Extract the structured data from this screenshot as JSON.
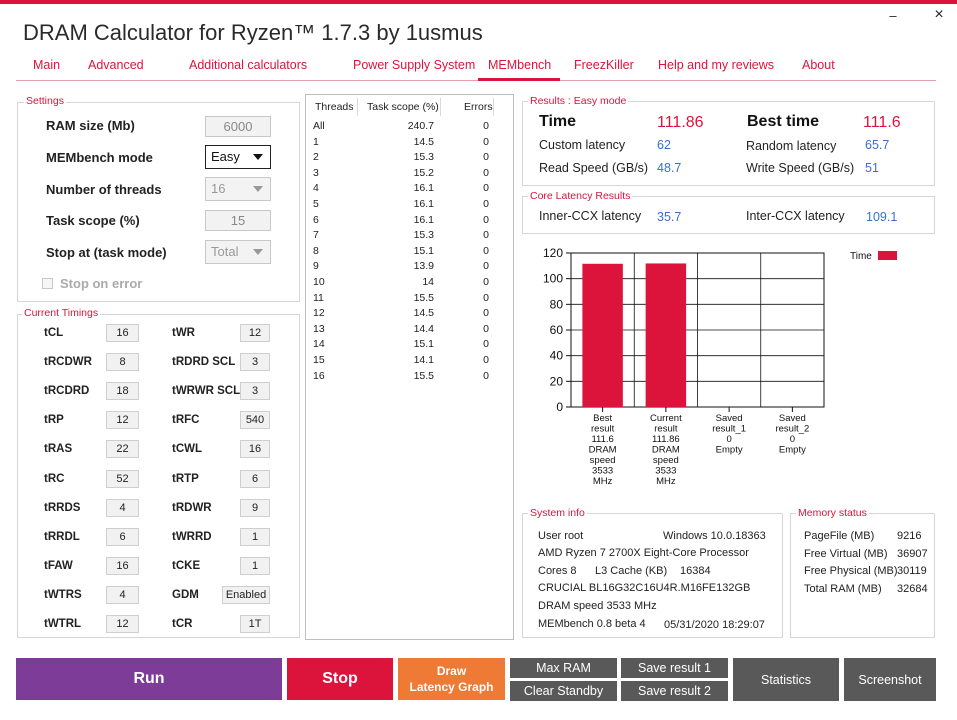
{
  "window": {
    "title": "DRAM Calculator for Ryzen™ 1.7.3 by 1usmus",
    "minimize_glyph": "–",
    "close_glyph": "×"
  },
  "tabs": [
    "Main",
    "Advanced",
    "Additional calculators",
    "Power Supply System",
    "MEMbench",
    "FreezKiller",
    "Help and my reviews",
    "About"
  ],
  "settings": {
    "group_label": "Settings",
    "ram_size_label": "RAM size (Mb)",
    "ram_size_value": "6000",
    "mode_label": "MEMbench mode",
    "mode_value": "Easy",
    "threads_label": "Number of threads",
    "threads_value": "16",
    "task_scope_label": "Task scope (%)",
    "task_scope_value": "15",
    "stop_at_label": "Stop at (task mode)",
    "stop_at_value": "Total",
    "stop_on_error_label": "Stop on error"
  },
  "timings": {
    "group_label": "Current Timings",
    "left": [
      {
        "label": "tCL",
        "value": "16"
      },
      {
        "label": "tRCDWR",
        "value": "8"
      },
      {
        "label": "tRCDRD",
        "value": "18"
      },
      {
        "label": "tRP",
        "value": "12"
      },
      {
        "label": "tRAS",
        "value": "22"
      },
      {
        "label": "tRC",
        "value": "52"
      },
      {
        "label": "tRRDS",
        "value": "4"
      },
      {
        "label": "tRRDL",
        "value": "6"
      },
      {
        "label": "tFAW",
        "value": "16"
      },
      {
        "label": "tWTRS",
        "value": "4"
      },
      {
        "label": "tWTRL",
        "value": "12"
      }
    ],
    "right": [
      {
        "label": "tWR",
        "value": "12"
      },
      {
        "label": "tRDRD SCL",
        "value": "3"
      },
      {
        "label": "tWRWR SCL",
        "value": "3"
      },
      {
        "label": "tRFC",
        "value": "540"
      },
      {
        "label": "tCWL",
        "value": "16"
      },
      {
        "label": "tRTP",
        "value": "6"
      },
      {
        "label": "tRDWR",
        "value": "9"
      },
      {
        "label": "tWRRD",
        "value": "1"
      },
      {
        "label": "tCKE",
        "value": "1"
      },
      {
        "label": "GDM",
        "value": "Enabled"
      },
      {
        "label": "tCR",
        "value": "1T"
      }
    ]
  },
  "threads_table": {
    "headers": [
      "Threads",
      "Task scope (%)",
      "Errors"
    ],
    "rows": [
      [
        "All",
        "240.7",
        "0"
      ],
      [
        "1",
        "14.5",
        "0"
      ],
      [
        "2",
        "15.3",
        "0"
      ],
      [
        "3",
        "15.2",
        "0"
      ],
      [
        "4",
        "16.1",
        "0"
      ],
      [
        "5",
        "16.1",
        "0"
      ],
      [
        "6",
        "16.1",
        "0"
      ],
      [
        "7",
        "15.3",
        "0"
      ],
      [
        "8",
        "15.1",
        "0"
      ],
      [
        "9",
        "13.9",
        "0"
      ],
      [
        "10",
        "14",
        "0"
      ],
      [
        "11",
        "15.5",
        "0"
      ],
      [
        "12",
        "14.5",
        "0"
      ],
      [
        "13",
        "14.4",
        "0"
      ],
      [
        "14",
        "15.1",
        "0"
      ],
      [
        "15",
        "14.1",
        "0"
      ],
      [
        "16",
        "15.5",
        "0"
      ]
    ]
  },
  "results": {
    "group_label": "Results : Easy mode",
    "time_label": "Time",
    "time_value": "111.86",
    "best_time_label": "Best time",
    "best_time_value": "111.6",
    "custom_latency_label": "Custom latency",
    "custom_latency_value": "62",
    "random_latency_label": "Random latency",
    "random_latency_value": "65.7",
    "read_speed_label": "Read Speed (GB/s)",
    "read_speed_value": "48.7",
    "write_speed_label": "Write Speed (GB/s)",
    "write_speed_value": "51"
  },
  "core_latency": {
    "group_label": "Core Latency Results",
    "inner_label": "Inner-CCX latency",
    "inner_value": "35.7",
    "inter_label": "Inter-CCX latency",
    "inter_value": "109.1"
  },
  "chart_data": {
    "type": "bar",
    "categories": [
      "Best result",
      "Current result",
      "Saved result_1",
      "Saved result_2"
    ],
    "category_label_lines": [
      [
        "Best",
        "result",
        "111.6",
        "DRAM",
        "speed",
        "3533",
        "MHz"
      ],
      [
        "Current",
        "result",
        "111.86",
        "DRAM",
        "speed",
        "3533",
        "MHz"
      ],
      [
        "Saved",
        "result_1",
        "0",
        "Empty"
      ],
      [
        "Saved",
        "result_2",
        "0",
        "Empty"
      ]
    ],
    "series": [
      {
        "name": "Time",
        "values": [
          111.6,
          111.86,
          0,
          0
        ]
      }
    ],
    "ylim": [
      0,
      120
    ],
    "yticks": [
      0,
      20,
      40,
      60,
      80,
      100,
      120
    ],
    "grid": true,
    "legend": "top-right",
    "bar_color": "#dc143c"
  },
  "system_info": {
    "group_label": "System info",
    "user": "User root",
    "os": "Windows 10.0.18363",
    "cpu": "AMD Ryzen 7 2700X Eight-Core Processor",
    "cores": "Cores 8",
    "l3_label": "L3 Cache (KB)",
    "l3_value": "16384",
    "memory": "CRUCIAL BL16G32C16U4R.M16FE132GB",
    "dram_speed": "DRAM speed 3533 MHz",
    "version": "MEMbench 0.8 beta 4",
    "timestamp": "05/31/2020 18:29:07"
  },
  "memory_status": {
    "group_label": "Memory status",
    "rows": [
      {
        "label": "PageFile (MB)",
        "value": "9216"
      },
      {
        "label": "Free Virtual (MB)",
        "value": "36907"
      },
      {
        "label": "Free Physical (MB)",
        "value": "30119"
      },
      {
        "label": "Total RAM (MB)",
        "value": "32684"
      }
    ]
  },
  "buttons": {
    "run": "Run",
    "stop": "Stop",
    "draw_line1": "Draw",
    "draw_line2": "Latency Graph",
    "max_ram": "Max RAM",
    "clear_standby": "Clear Standby",
    "save1": "Save result 1",
    "save2": "Save result 2",
    "statistics": "Statistics",
    "screenshot": "Screenshot"
  },
  "colors": {
    "accent": "#dc143c",
    "run": "#7d3c98",
    "draw": "#ef7a35",
    "gray": "#595959"
  }
}
